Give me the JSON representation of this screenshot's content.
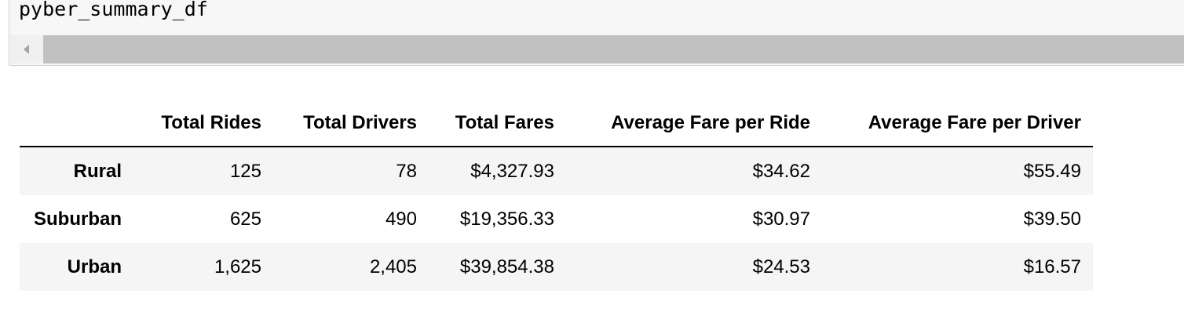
{
  "code_cell": {
    "source": "pyber_summary_df"
  },
  "table": {
    "index_header": "",
    "columns": [
      "Total Rides",
      "Total Drivers",
      "Total Fares",
      "Average Fare per Ride",
      "Average Fare per Driver"
    ],
    "rows": [
      {
        "index": "Rural",
        "cells": [
          "125",
          "78",
          "$4,327.93",
          "$34.62",
          "$55.49"
        ]
      },
      {
        "index": "Suburban",
        "cells": [
          "625",
          "490",
          "$19,356.33",
          "$30.97",
          "$39.50"
        ]
      },
      {
        "index": "Urban",
        "cells": [
          "1,625",
          "2,405",
          "$39,854.38",
          "$24.53",
          "$16.57"
        ]
      }
    ]
  },
  "colors": {
    "cell_background": "#f7f7f7",
    "cell_border": "#cfcfcf",
    "scrollbar_thumb": "#c1c1c1",
    "striped_row": "#f5f5f5",
    "header_rule": "#000000"
  },
  "icons": {
    "scroll_left": "scroll-left-arrow-icon"
  }
}
